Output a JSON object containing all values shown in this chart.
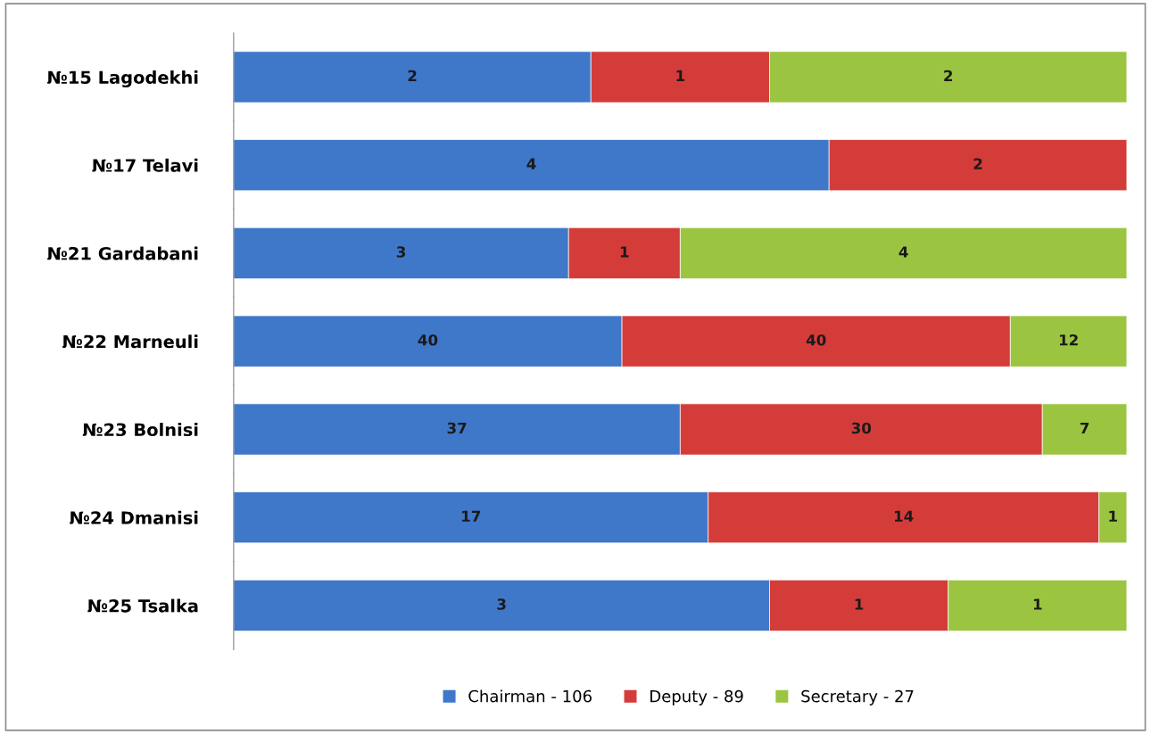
{
  "chart_data": [
    {
      "type": "bar",
      "orientation": "horizontal",
      "stacked": true,
      "tick_labels": "y",
      "data_labels": true,
      "xlim": [
        0,
        5
      ],
      "legend": "bottom",
      "categories": [
        "№15 Lagodekhi"
      ],
      "series": [
        {
          "name": "Chairman - 106",
          "color": "#3f77c9",
          "values": [
            2
          ]
        },
        {
          "name": "Deputy - 89",
          "color": "#d43c3a",
          "values": [
            1
          ]
        },
        {
          "name": "Secretary - 27",
          "color": "#9bc540",
          "values": [
            2
          ]
        }
      ]
    },
    {
      "type": "bar",
      "orientation": "horizontal",
      "stacked": true,
      "tick_labels": "y",
      "data_labels": true,
      "xlim": [
        0,
        6
      ],
      "categories": [
        "№17 Telavi"
      ],
      "series": [
        {
          "color": "#3f77c9",
          "values": [
            4
          ]
        },
        {
          "color": "#d43c3a",
          "values": [
            2
          ]
        }
      ]
    },
    {
      "type": "bar",
      "orientation": "horizontal",
      "stacked": true,
      "tick_labels": "y",
      "data_labels": true,
      "xlim": [
        0,
        8
      ],
      "categories": [
        "№21 Gardabani"
      ],
      "series": [
        {
          "color": "#3f77c9",
          "values": [
            3
          ]
        },
        {
          "color": "#d43c3a",
          "values": [
            1
          ]
        },
        {
          "color": "#9bc540",
          "values": [
            4
          ]
        }
      ]
    },
    {
      "type": "bar",
      "orientation": "horizontal",
      "stacked": true,
      "tick_labels": "y",
      "data_labels": true,
      "xlim": [
        0,
        92
      ],
      "categories": [
        "№22 Marneuli"
      ],
      "series": [
        {
          "color": "#3f77c9",
          "values": [
            40
          ]
        },
        {
          "color": "#d43c3a",
          "values": [
            40
          ]
        },
        {
          "color": "#9bc540",
          "values": [
            12
          ]
        }
      ]
    },
    {
      "type": "bar",
      "orientation": "horizontal",
      "stacked": true,
      "tick_labels": "y",
      "data_labels": true,
      "xlim": [
        0,
        74
      ],
      "categories": [
        "№23 Bolnisi"
      ],
      "series": [
        {
          "color": "#3f77c9",
          "values": [
            37
          ]
        },
        {
          "color": "#d43c3a",
          "values": [
            30
          ]
        },
        {
          "color": "#9bc540",
          "values": [
            7
          ]
        }
      ]
    },
    {
      "type": "bar",
      "orientation": "horizontal",
      "stacked": true,
      "tick_labels": "y",
      "data_labels": true,
      "xlim": [
        0,
        32
      ],
      "categories": [
        "№24 Dmanisi"
      ],
      "series": [
        {
          "color": "#3f77c9",
          "values": [
            17
          ]
        },
        {
          "color": "#d43c3a",
          "values": [
            14
          ]
        },
        {
          "color": "#9bc540",
          "values": [
            1
          ]
        }
      ]
    },
    {
      "type": "bar",
      "orientation": "horizontal",
      "stacked": true,
      "tick_labels": "y",
      "data_labels": true,
      "xlim": [
        0,
        5
      ],
      "categories": [
        "№25 Tsalka"
      ],
      "series": [
        {
          "color": "#3f77c9",
          "values": [
            3
          ]
        },
        {
          "color": "#d43c3a",
          "values": [
            1
          ]
        },
        {
          "color": "#9bc540",
          "values": [
            1
          ]
        }
      ]
    }
  ]
}
